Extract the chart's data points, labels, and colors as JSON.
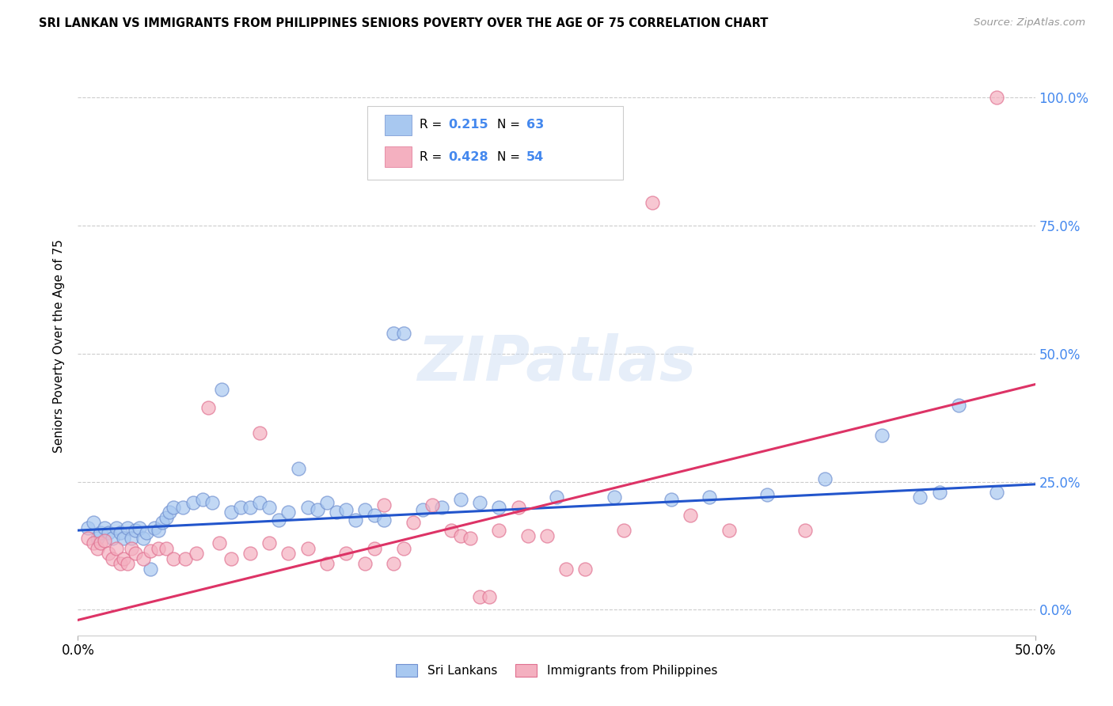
{
  "title": "SRI LANKAN VS IMMIGRANTS FROM PHILIPPINES SENIORS POVERTY OVER THE AGE OF 75 CORRELATION CHART",
  "source": "Source: ZipAtlas.com",
  "ylabel": "Seniors Poverty Over the Age of 75",
  "xlim": [
    0.0,
    0.5
  ],
  "ylim": [
    -0.05,
    1.08
  ],
  "yticks": [
    0.0,
    0.25,
    0.5,
    0.75,
    1.0
  ],
  "ytick_labels": [
    "0.0%",
    "25.0%",
    "50.0%",
    "75.0%",
    "100.0%"
  ],
  "sri_R": 0.215,
  "sri_N": 63,
  "phil_R": 0.428,
  "phil_N": 54,
  "sri_color": "#a8c8f0",
  "phil_color": "#f4b0c0",
  "sri_edge_color": "#7090d0",
  "phil_edge_color": "#e07090",
  "sri_line_color": "#2255cc",
  "phil_line_color": "#dd3366",
  "legend_label_sri": "Sri Lankans",
  "legend_label_phil": "Immigrants from Philippines",
  "watermark": "ZIPatlas",
  "sri_x": [
    0.005,
    0.008,
    0.01,
    0.012,
    0.014,
    0.016,
    0.018,
    0.02,
    0.022,
    0.024,
    0.026,
    0.028,
    0.03,
    0.032,
    0.034,
    0.036,
    0.038,
    0.04,
    0.042,
    0.044,
    0.046,
    0.048,
    0.05,
    0.055,
    0.06,
    0.065,
    0.07,
    0.075,
    0.08,
    0.085,
    0.09,
    0.095,
    0.1,
    0.105,
    0.11,
    0.115,
    0.12,
    0.125,
    0.13,
    0.135,
    0.14,
    0.145,
    0.15,
    0.155,
    0.16,
    0.165,
    0.17,
    0.18,
    0.19,
    0.2,
    0.21,
    0.22,
    0.25,
    0.28,
    0.31,
    0.33,
    0.36,
    0.39,
    0.42,
    0.44,
    0.45,
    0.46,
    0.48
  ],
  "sri_y": [
    0.16,
    0.17,
    0.14,
    0.15,
    0.16,
    0.15,
    0.14,
    0.16,
    0.15,
    0.14,
    0.16,
    0.14,
    0.155,
    0.16,
    0.14,
    0.15,
    0.08,
    0.16,
    0.155,
    0.17,
    0.18,
    0.19,
    0.2,
    0.2,
    0.21,
    0.215,
    0.21,
    0.43,
    0.19,
    0.2,
    0.2,
    0.21,
    0.2,
    0.175,
    0.19,
    0.275,
    0.2,
    0.195,
    0.21,
    0.19,
    0.195,
    0.175,
    0.195,
    0.185,
    0.175,
    0.54,
    0.54,
    0.195,
    0.2,
    0.215,
    0.21,
    0.2,
    0.22,
    0.22,
    0.215,
    0.22,
    0.225,
    0.255,
    0.34,
    0.22,
    0.23,
    0.4,
    0.23
  ],
  "phil_x": [
    0.005,
    0.008,
    0.01,
    0.012,
    0.014,
    0.016,
    0.018,
    0.02,
    0.022,
    0.024,
    0.026,
    0.028,
    0.03,
    0.034,
    0.038,
    0.042,
    0.046,
    0.05,
    0.056,
    0.062,
    0.068,
    0.074,
    0.08,
    0.09,
    0.095,
    0.1,
    0.11,
    0.12,
    0.13,
    0.14,
    0.15,
    0.155,
    0.16,
    0.165,
    0.17,
    0.175,
    0.185,
    0.195,
    0.2,
    0.205,
    0.21,
    0.215,
    0.22,
    0.23,
    0.235,
    0.245,
    0.255,
    0.265,
    0.285,
    0.3,
    0.32,
    0.34,
    0.38,
    0.48
  ],
  "phil_y": [
    0.14,
    0.13,
    0.12,
    0.13,
    0.135,
    0.11,
    0.1,
    0.12,
    0.09,
    0.1,
    0.09,
    0.12,
    0.11,
    0.1,
    0.115,
    0.12,
    0.12,
    0.1,
    0.1,
    0.11,
    0.395,
    0.13,
    0.1,
    0.11,
    0.345,
    0.13,
    0.11,
    0.12,
    0.09,
    0.11,
    0.09,
    0.12,
    0.205,
    0.09,
    0.12,
    0.17,
    0.205,
    0.155,
    0.145,
    0.14,
    0.025,
    0.025,
    0.155,
    0.2,
    0.145,
    0.145,
    0.08,
    0.08,
    0.155,
    0.795,
    0.185,
    0.155,
    0.155,
    1.0
  ]
}
